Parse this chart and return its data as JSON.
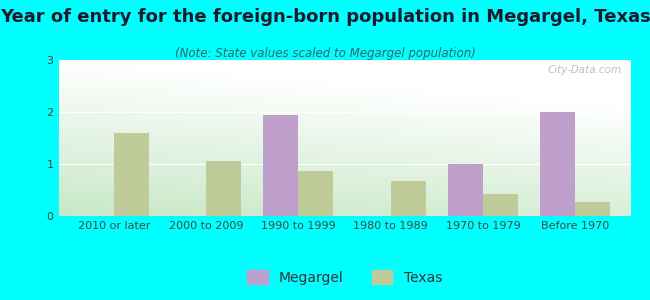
{
  "title": "Year of entry for the foreign-born population in Megargel, Texas",
  "subtitle": "(Note: State values scaled to Megargel population)",
  "categories": [
    "2010 or later",
    "2000 to 2009",
    "1990 to 1999",
    "1980 to 1989",
    "1970 to 1979",
    "Before 1970"
  ],
  "megargel_values": [
    0,
    0,
    1.95,
    0,
    1.0,
    2.0
  ],
  "texas_values": [
    1.6,
    1.05,
    0.87,
    0.68,
    0.42,
    0.27
  ],
  "megargel_color": "#bf9fcc",
  "texas_color": "#bfcc99",
  "background_color": "#00ffff",
  "ylim": [
    0,
    3
  ],
  "yticks": [
    0,
    1,
    2,
    3
  ],
  "bar_width": 0.38,
  "title_fontsize": 13,
  "subtitle_fontsize": 8.5,
  "tick_fontsize": 8,
  "legend_fontsize": 10,
  "watermark": "City-Data.com"
}
